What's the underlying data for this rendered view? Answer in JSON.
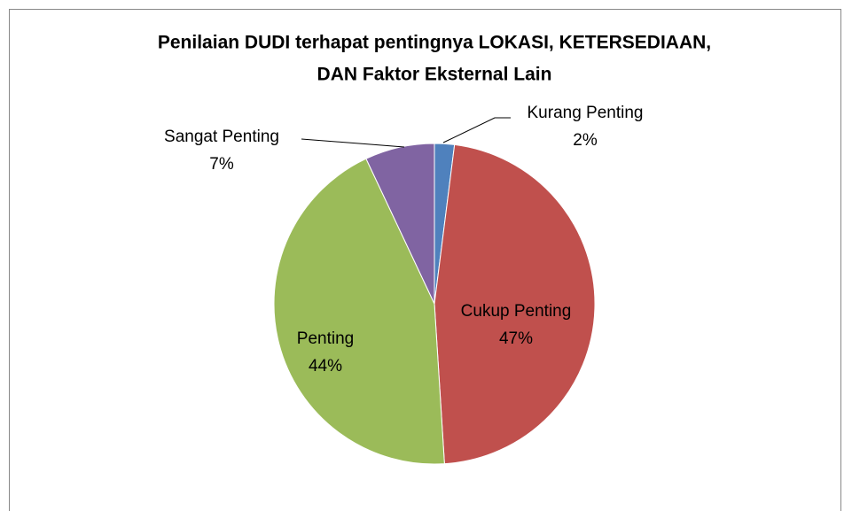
{
  "chart_data": {
    "type": "pie",
    "title": [
      "Penilaian DUDI terhapat pentingnya  LOKASI, KETERSEDIAAN,",
      "DAN Faktor Eksternal Lain"
    ],
    "categories": [
      "Kurang Penting",
      "Cukup Penting",
      "Penting",
      "Sangat Penting"
    ],
    "values": [
      2,
      47,
      44,
      7
    ],
    "value_labels": [
      "2%",
      "47%",
      "44%",
      "7%"
    ],
    "colors": [
      "#4f81bd",
      "#c0504d",
      "#9bbb59",
      "#8064a2"
    ]
  }
}
